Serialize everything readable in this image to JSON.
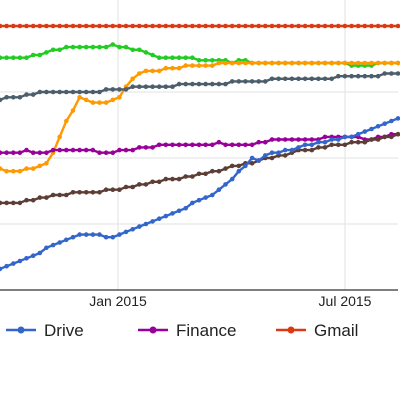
{
  "chart_data": {
    "type": "line",
    "x_ticks": [
      "Jan 2015",
      "Jul 2015"
    ],
    "x": [
      1,
      2,
      3,
      4,
      5,
      6,
      7,
      8,
      9,
      10,
      11,
      12,
      13,
      14,
      15,
      16,
      17,
      18,
      19,
      20,
      21,
      22,
      23,
      24,
      25,
      26,
      27,
      28,
      29,
      30,
      31,
      32,
      33,
      34,
      35,
      36,
      37,
      38,
      39,
      40,
      41,
      42,
      43,
      44,
      45,
      46,
      47,
      48,
      49,
      50,
      51,
      52,
      53,
      54,
      55,
      56,
      57,
      58,
      59,
      60,
      61
    ],
    "ylim": [
      0,
      100
    ],
    "legend": [
      "Drive",
      "Finance",
      "Gmail"
    ],
    "legend_position": "bottom",
    "series": [
      {
        "name": "Gmail",
        "color": "#dc3912",
        "values": [
          100,
          100,
          100,
          100,
          100,
          100,
          100,
          100,
          100,
          100,
          100,
          100,
          100,
          100,
          100,
          100,
          100,
          100,
          100,
          100,
          100,
          100,
          100,
          100,
          100,
          100,
          100,
          100,
          100,
          100,
          100,
          100,
          100,
          100,
          100,
          100,
          100,
          100,
          100,
          100,
          100,
          100,
          100,
          100,
          100,
          100,
          100,
          100,
          100,
          100,
          100,
          100,
          100,
          100,
          100,
          100,
          100,
          100,
          100,
          100,
          100
        ]
      },
      {
        "color": "#22cc22",
        "values": [
          88,
          88,
          88,
          88,
          88,
          89,
          89,
          90,
          91,
          91,
          92,
          92,
          92,
          92,
          92,
          92,
          92,
          93,
          92,
          92,
          91,
          91,
          90,
          89,
          88,
          88,
          88,
          88,
          88,
          88,
          87,
          87,
          87,
          87,
          87,
          86,
          87,
          87,
          86,
          86,
          86,
          86,
          86,
          86,
          86,
          86,
          86,
          86,
          86,
          86,
          86,
          86,
          86,
          85,
          85,
          85,
          85,
          86,
          86,
          86,
          86
        ]
      },
      {
        "color": "#ff9900",
        "values": [
          46,
          45,
          45,
          45,
          46,
          46,
          47,
          48,
          52,
          58,
          64,
          68,
          73,
          72,
          71,
          71,
          71,
          72,
          73,
          77,
          80,
          82,
          83,
          83,
          83,
          84,
          84,
          84,
          85,
          85,
          85,
          85,
          85,
          86,
          86,
          86,
          86,
          86,
          86,
          86,
          86,
          86,
          86,
          86,
          86,
          86,
          86,
          86,
          86,
          86,
          86,
          86,
          86,
          86,
          86,
          86,
          86,
          86,
          86,
          86,
          86
        ]
      },
      {
        "color": "#4c5e6b",
        "values": [
          72,
          73,
          73,
          73,
          74,
          74,
          75,
          75,
          75,
          75,
          75,
          75,
          75,
          75,
          75,
          75,
          76,
          76,
          76,
          76,
          77,
          77,
          77,
          77,
          77,
          77,
          77,
          78,
          78,
          78,
          78,
          78,
          78,
          78,
          78,
          79,
          79,
          79,
          79,
          79,
          79,
          80,
          80,
          80,
          80,
          80,
          80,
          80,
          80,
          80,
          80,
          81,
          81,
          81,
          81,
          81,
          81,
          81,
          82,
          82,
          82
        ]
      },
      {
        "name": "Finance",
        "color": "#990099",
        "values": [
          52,
          52,
          52,
          52,
          53,
          52,
          52,
          52,
          53,
          53,
          53,
          53,
          53,
          53,
          53,
          52,
          52,
          52,
          53,
          53,
          53,
          54,
          54,
          54,
          55,
          55,
          55,
          55,
          55,
          55,
          55,
          55,
          55,
          56,
          55,
          55,
          55,
          55,
          55,
          56,
          56,
          57,
          57,
          57,
          57,
          57,
          57,
          57,
          57,
          58,
          58,
          58,
          58,
          58,
          58,
          57,
          57,
          58,
          58,
          59,
          59
        ]
      },
      {
        "color": "#5d3e36",
        "values": [
          33,
          33,
          33,
          33,
          34,
          34,
          35,
          35,
          36,
          36,
          36,
          37,
          37,
          37,
          37,
          37,
          38,
          38,
          38,
          39,
          39,
          40,
          40,
          41,
          41,
          42,
          42,
          42,
          43,
          43,
          44,
          44,
          45,
          45,
          46,
          47,
          47,
          48,
          48,
          49,
          50,
          50,
          51,
          51,
          52,
          53,
          53,
          53,
          54,
          54,
          55,
          55,
          55,
          56,
          56,
          56,
          57,
          57,
          58,
          58,
          59
        ]
      },
      {
        "name": "Drive",
        "color": "#3366cc",
        "values": [
          8,
          9,
          10,
          11,
          12,
          13,
          14,
          16,
          17,
          18,
          19,
          20,
          21,
          21,
          21,
          21,
          20,
          20,
          21,
          22,
          23,
          24,
          25,
          26,
          27,
          28,
          29,
          30,
          31,
          33,
          34,
          35,
          36,
          38,
          40,
          42,
          45,
          47,
          50,
          49,
          51,
          52,
          52,
          53,
          53,
          54,
          55,
          55,
          56,
          56,
          57,
          57,
          58,
          58,
          59,
          60,
          61,
          62,
          63,
          64,
          65
        ]
      }
    ]
  }
}
